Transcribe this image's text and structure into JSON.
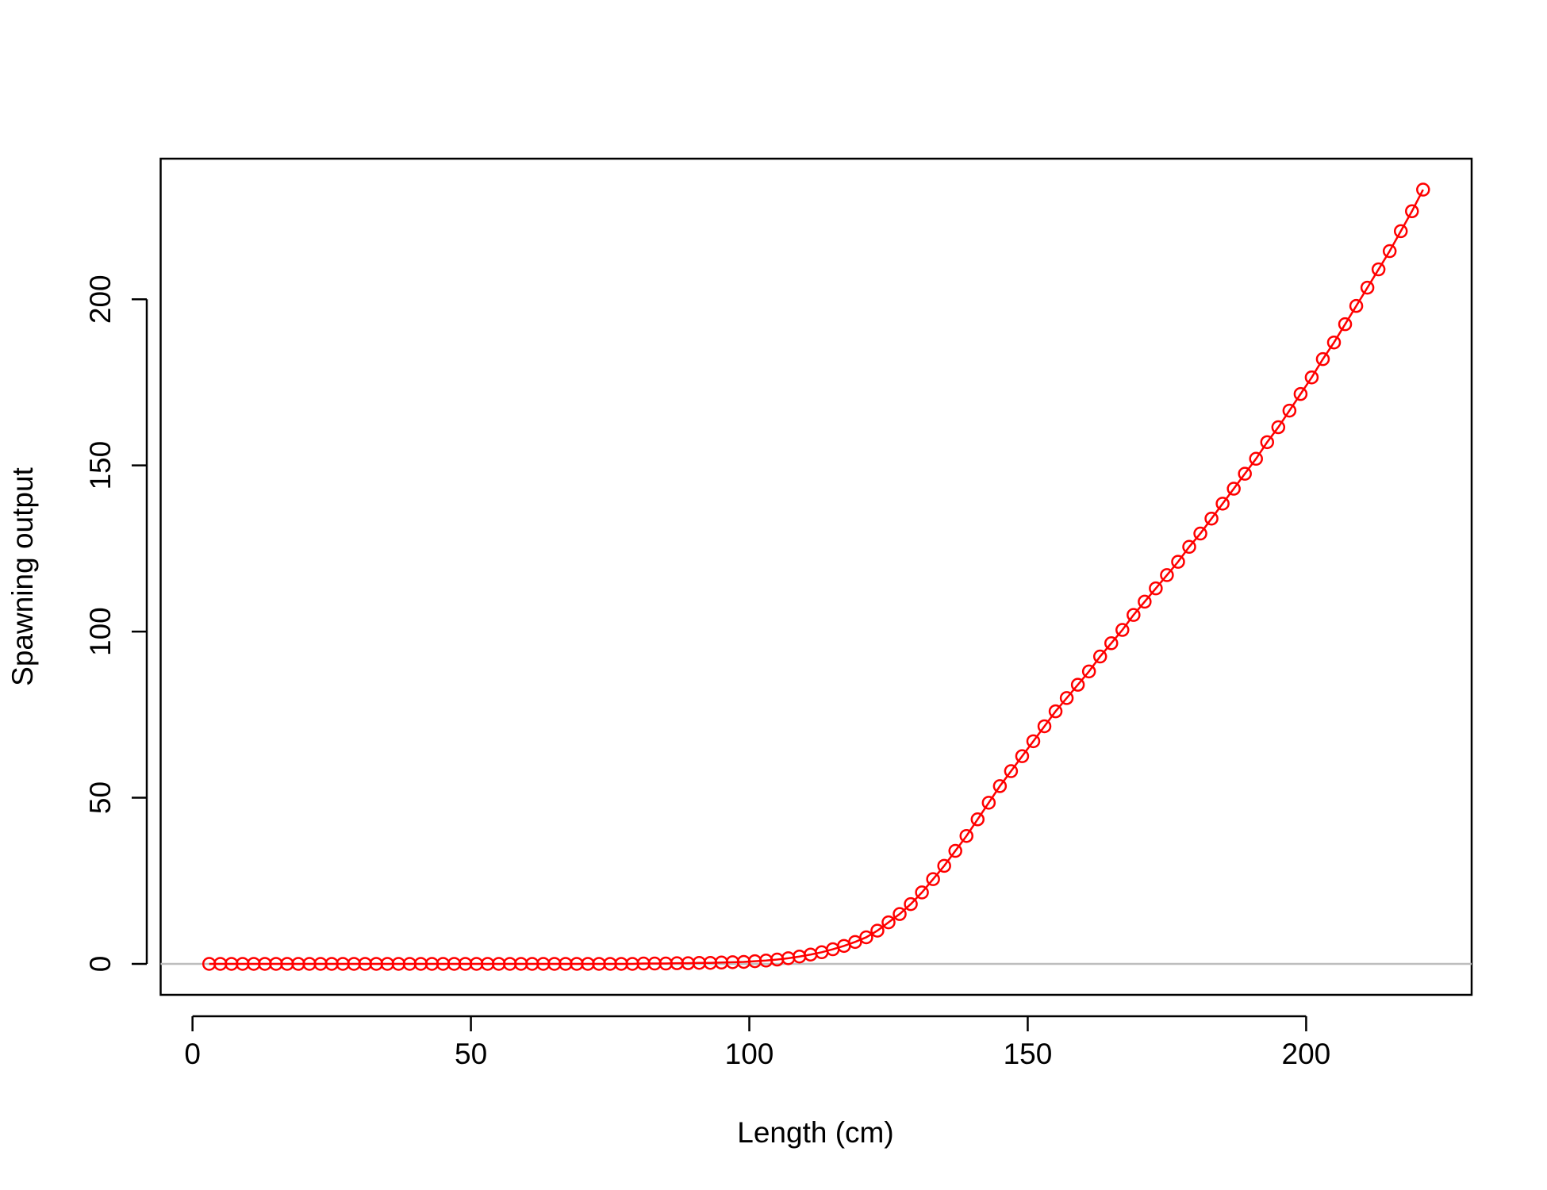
{
  "chart_data": {
    "type": "line",
    "xlabel": "Length (cm)",
    "ylabel": "Spawning output",
    "x": [
      3,
      5,
      7,
      9,
      11,
      13,
      15,
      17,
      19,
      21,
      23,
      25,
      27,
      29,
      31,
      33,
      35,
      37,
      39,
      41,
      43,
      45,
      47,
      49,
      51,
      53,
      55,
      57,
      59,
      61,
      63,
      65,
      67,
      69,
      71,
      73,
      75,
      77,
      79,
      81,
      83,
      85,
      87,
      89,
      91,
      93,
      95,
      97,
      99,
      101,
      103,
      105,
      107,
      109,
      111,
      113,
      115,
      117,
      119,
      121,
      123,
      125,
      127,
      129,
      131,
      133,
      135,
      137,
      139,
      141,
      143,
      145,
      147,
      149,
      151,
      153,
      155,
      157,
      159,
      161,
      163,
      165,
      167,
      169,
      171,
      173,
      175,
      177,
      179,
      181,
      183,
      185,
      187,
      189,
      191,
      193,
      195,
      197,
      199,
      201,
      203,
      205,
      207,
      209,
      211,
      213,
      215,
      217,
      219,
      221
    ],
    "values": [
      0,
      0,
      0,
      0,
      0,
      0,
      0,
      0,
      0,
      0,
      0,
      0,
      0,
      0,
      0,
      0,
      0,
      0,
      0,
      0,
      0,
      0,
      0,
      0,
      0,
      0,
      0,
      0,
      0,
      0,
      0,
      0,
      0,
      0,
      0,
      0,
      0,
      0,
      0,
      0.1,
      0.1,
      0.1,
      0.2,
      0.2,
      0.3,
      0.3,
      0.4,
      0.5,
      0.6,
      0.8,
      1.0,
      1.3,
      1.7,
      2.2,
      2.8,
      3.5,
      4.4,
      5.4,
      6.6,
      8,
      10,
      12.5,
      15,
      18,
      21.5,
      25.5,
      29.5,
      34,
      38.5,
      43.5,
      48.5,
      53.5,
      58,
      62.5,
      67,
      71.5,
      76,
      80,
      84,
      88,
      92.5,
      96.5,
      100.5,
      105,
      109,
      113,
      117,
      121,
      125.5,
      129.5,
      134,
      138.5,
      143,
      147.5,
      152,
      157,
      161.5,
      166.5,
      171.5,
      176.5,
      182,
      187,
      192.5,
      198,
      203.5,
      209,
      214.5,
      220.5,
      226.5,
      233
    ],
    "color": "#ff0000",
    "reference_line": 0,
    "reference_color": "#bebebe",
    "xlim": [
      -5.72,
      229.72
    ],
    "ylim": [
      -9.32,
      242.32
    ],
    "xticks": [
      0,
      50,
      100,
      150,
      200
    ],
    "yticks": [
      0,
      50,
      100,
      150,
      200
    ]
  }
}
